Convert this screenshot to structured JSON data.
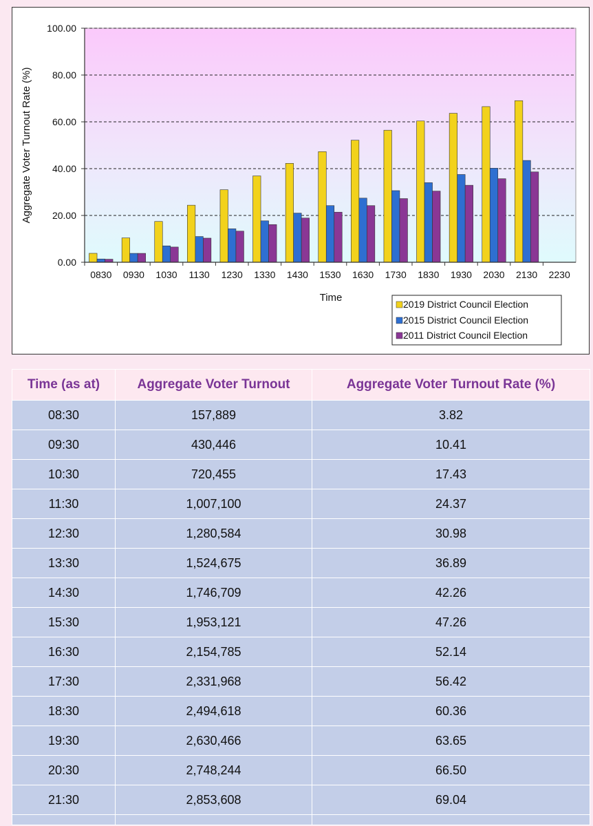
{
  "colors": {
    "series_2019": "#f2d21c",
    "series_2015": "#2e6fd1",
    "series_2011": "#8a3795",
    "header_text": "#7a3596",
    "cell_bg": "#c3cee8",
    "page_bg": "#fbe8f1"
  },
  "chart_data": {
    "type": "bar",
    "xlabel": "Time",
    "ylabel": "Aggregate Voter Turnout Rate (%)",
    "categories": [
      "0830",
      "0930",
      "1030",
      "1130",
      "1230",
      "1330",
      "1430",
      "1530",
      "1630",
      "1730",
      "1830",
      "1930",
      "2030",
      "2130",
      "2230"
    ],
    "ylim": [
      0,
      100
    ],
    "yticks": [
      "0.00",
      "20.00",
      "40.00",
      "60.00",
      "80.00",
      "100.00"
    ],
    "grid": true,
    "legend_position": "bottom-right",
    "series": [
      {
        "name": "2019 District Council Election",
        "values": [
          3.82,
          10.41,
          17.43,
          24.37,
          30.98,
          36.89,
          42.26,
          47.26,
          52.14,
          56.42,
          60.36,
          63.65,
          66.5,
          69.04,
          null
        ]
      },
      {
        "name": "2015 District Council Election",
        "values": [
          1.4,
          3.8,
          7.0,
          11.0,
          14.3,
          17.7,
          21.0,
          24.2,
          27.4,
          30.6,
          34.0,
          37.5,
          40.2,
          43.5,
          null
        ]
      },
      {
        "name": "2011 District Council Election",
        "values": [
          1.3,
          3.8,
          6.5,
          10.3,
          13.3,
          16.1,
          18.9,
          21.4,
          24.2,
          27.2,
          30.4,
          32.9,
          35.7,
          38.6,
          null
        ]
      }
    ]
  },
  "table": {
    "headers": [
      "Time (as at)",
      "Aggregate Voter Turnout",
      "Aggregate Voter Turnout Rate (%)"
    ],
    "rows": [
      [
        "08:30",
        "157,889",
        "3.82"
      ],
      [
        "09:30",
        "430,446",
        "10.41"
      ],
      [
        "10:30",
        "720,455",
        "17.43"
      ],
      [
        "11:30",
        "1,007,100",
        "24.37"
      ],
      [
        "12:30",
        "1,280,584",
        "30.98"
      ],
      [
        "13:30",
        "1,524,675",
        "36.89"
      ],
      [
        "14:30",
        "1,746,709",
        "42.26"
      ],
      [
        "15:30",
        "1,953,121",
        "47.26"
      ],
      [
        "16:30",
        "2,154,785",
        "52.14"
      ],
      [
        "17:30",
        "2,331,968",
        "56.42"
      ],
      [
        "18:30",
        "2,494,618",
        "60.36"
      ],
      [
        "19:30",
        "2,630,466",
        "63.65"
      ],
      [
        "20:30",
        "2,748,244",
        "66.50"
      ],
      [
        "21:30",
        "2,853,608",
        "69.04"
      ]
    ]
  }
}
